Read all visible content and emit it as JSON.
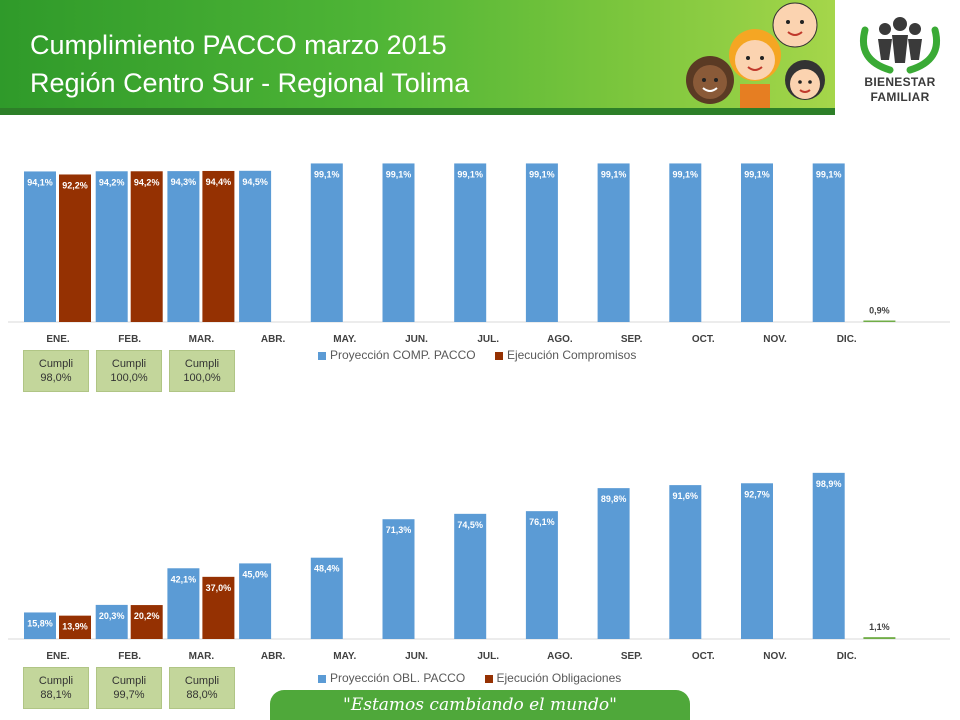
{
  "header": {
    "title_line1": "Cumplimiento PACCO marzo 2015",
    "title_line2": "Región Centro Sur - Regional Tolima",
    "logo_line1": "BIENESTAR",
    "logo_line2": "FAMILIAR"
  },
  "footer": {
    "slogan": "\"Estamos cambiando el mundo\""
  },
  "colors": {
    "proyeccion": "#5b9bd5",
    "ejecucion": "#953102",
    "green_bar": "#70ad47"
  },
  "chart_data": [
    {
      "type": "bar",
      "categories": [
        "ENE.",
        "FEB.",
        "MAR.",
        "ABR.",
        "MAY.",
        "JUN.",
        "JUL.",
        "AGO.",
        "SEP.",
        "OCT.",
        "NOV.",
        "DIC.",
        ""
      ],
      "series": [
        {
          "name": "Proyección COMP. PACCO",
          "values": [
            94.1,
            94.2,
            94.3,
            94.5,
            99.1,
            99.1,
            99.1,
            99.1,
            99.1,
            99.1,
            99.1,
            99.1,
            null
          ],
          "labels": [
            "94,1%",
            "94,2%",
            "94,3%",
            "94,5%",
            "99,1%",
            "99,1%",
            "99,1%",
            "99,1%",
            "99,1%",
            "99,1%",
            "99,1%",
            "99,1%",
            ""
          ]
        },
        {
          "name": "Ejecución Compromisos",
          "values": [
            92.2,
            94.2,
            94.4,
            null,
            null,
            null,
            null,
            null,
            null,
            null,
            null,
            null,
            null
          ],
          "labels": [
            "92,2%",
            "94,2%",
            "94,4%",
            "",
            "",
            "",
            "",
            "",
            "",
            "",
            "",
            "",
            ""
          ]
        }
      ],
      "extra_bar": {
        "value": 0.9,
        "label": "0,9%"
      },
      "ylim": [
        0,
        100
      ],
      "cumpli": [
        {
          "label": "Cumpli",
          "value": "98,0%"
        },
        {
          "label": "Cumpli",
          "value": "100,0%"
        },
        {
          "label": "Cumpli",
          "value": "100,0%"
        }
      ]
    },
    {
      "type": "bar",
      "categories": [
        "ENE.",
        "FEB.",
        "MAR.",
        "ABR.",
        "MAY.",
        "JUN.",
        "JUL.",
        "AGO.",
        "SEP.",
        "OCT.",
        "NOV.",
        "DIC.",
        ""
      ],
      "series": [
        {
          "name": "Proyección OBL. PACCO",
          "values": [
            15.8,
            20.3,
            42.1,
            45.0,
            48.4,
            71.3,
            74.5,
            76.1,
            89.8,
            91.6,
            92.7,
            98.9,
            null
          ],
          "labels": [
            "15,8%",
            "20,3%",
            "42,1%",
            "45,0%",
            "48,4%",
            "71,3%",
            "74,5%",
            "76,1%",
            "89,8%",
            "91,6%",
            "92,7%",
            "98,9%",
            ""
          ]
        },
        {
          "name": "Ejecución Obligaciones",
          "values": [
            13.9,
            20.2,
            37.0,
            null,
            null,
            null,
            null,
            null,
            null,
            null,
            null,
            null,
            null
          ],
          "labels": [
            "13,9%",
            "20,2%",
            "37,0%",
            "",
            "",
            "",
            "",
            "",
            "",
            "",
            "",
            "",
            ""
          ]
        }
      ],
      "extra_bar": {
        "value": 1.1,
        "label": "1,1%"
      },
      "ylim": [
        0,
        100
      ],
      "cumpli": [
        {
          "label": "Cumpli",
          "value": "88,1%"
        },
        {
          "label": "Cumpli",
          "value": "99,7%"
        },
        {
          "label": "Cumpli",
          "value": "88,0%"
        }
      ]
    }
  ]
}
